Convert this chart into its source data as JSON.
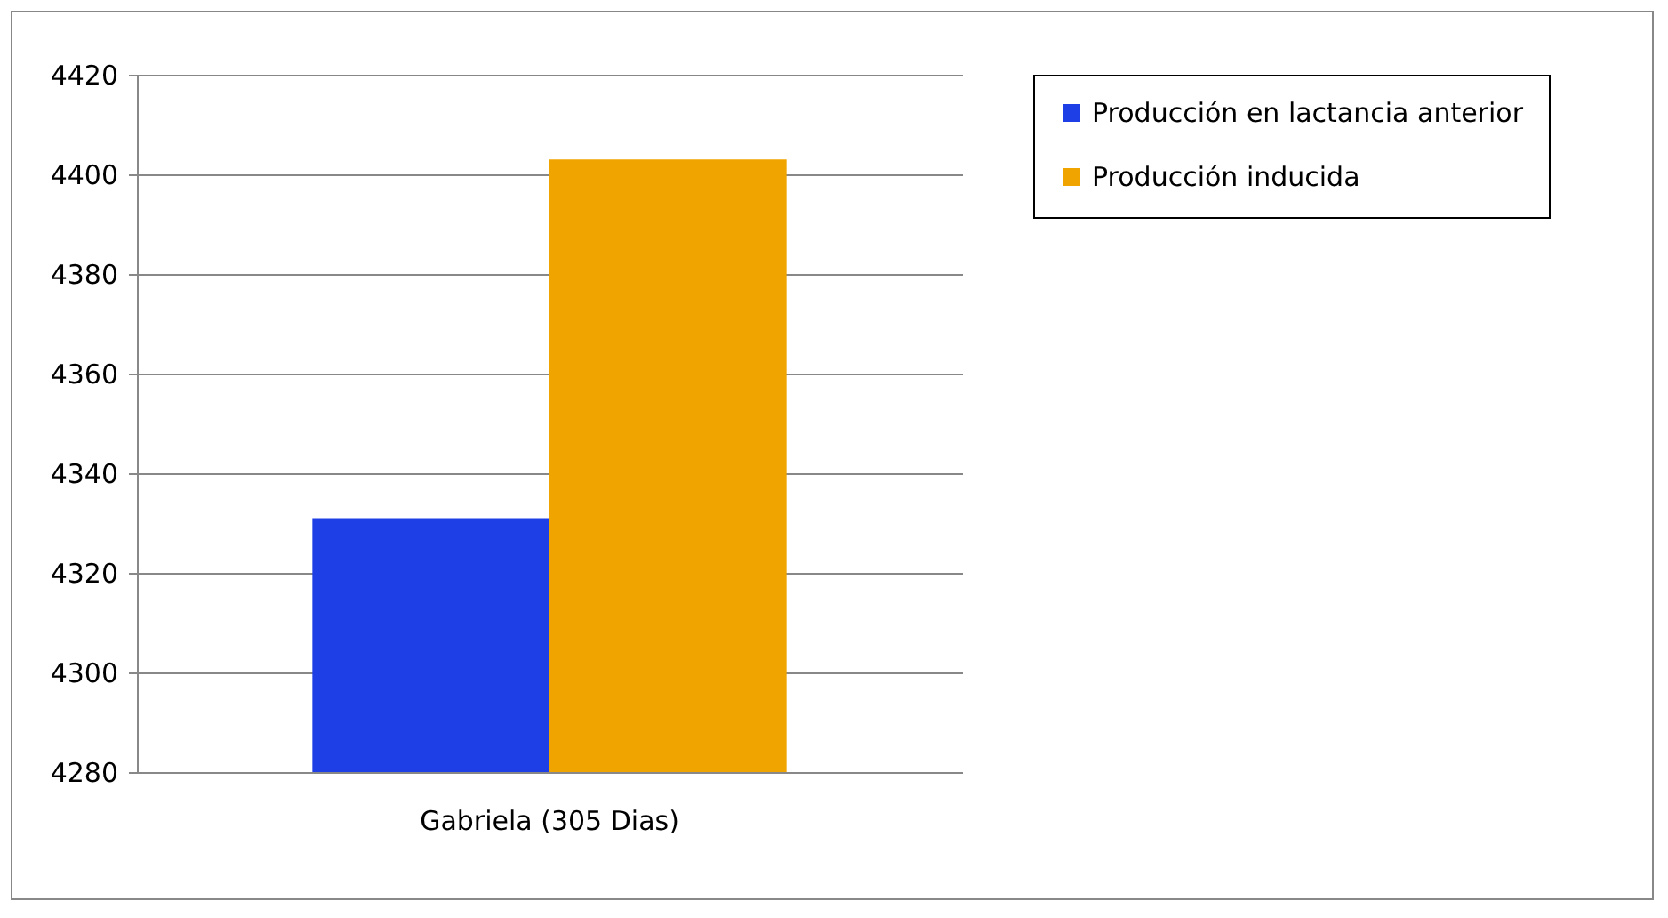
{
  "chart_data": {
    "type": "bar",
    "categories": [
      "Gabriela (305 Dias)"
    ],
    "series": [
      {
        "name": "Producción en lactancia anterior",
        "color": "#1f3fe6",
        "values": [
          4331
        ]
      },
      {
        "name": "Producción inducida",
        "color": "#f0a400",
        "values": [
          4403
        ]
      }
    ],
    "ylim": [
      4280,
      4420
    ],
    "yticks": [
      4280,
      4300,
      4320,
      4340,
      4360,
      4380,
      4400,
      4420
    ],
    "grid": "y",
    "legend": "right"
  }
}
